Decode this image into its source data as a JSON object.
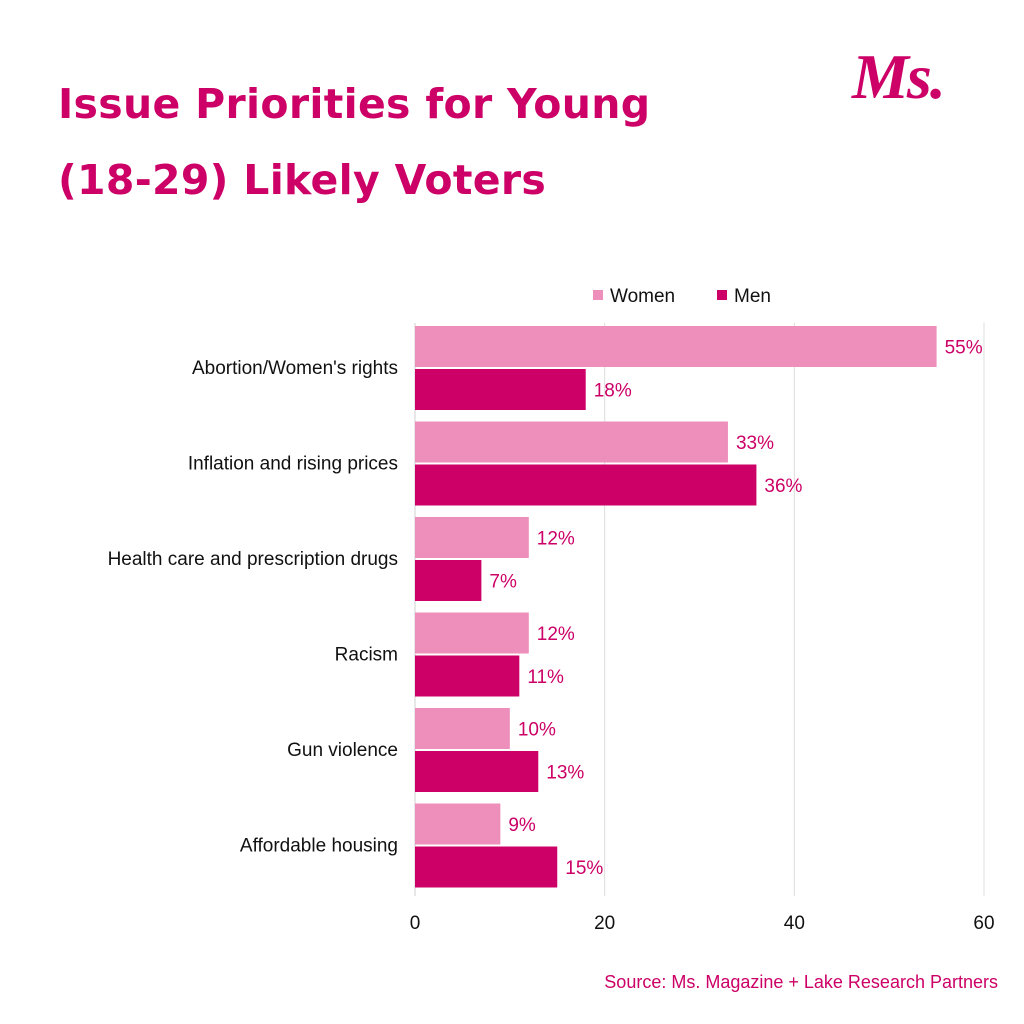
{
  "title": {
    "line1": "Issue Priorities for Young",
    "line2": "(18-29) Likely Voters"
  },
  "logo": "Ms.",
  "source": "Source: Ms. Magazine + Lake Research Partners",
  "colors": {
    "women": "#ee8ebb",
    "men": "#cc0066",
    "accent": "#cc0066",
    "grid": "#dddddd"
  },
  "chart_data": {
    "type": "bar",
    "orientation": "horizontal",
    "categories": [
      "Abortion/Women's rights",
      "Inflation and rising prices",
      "Health care and prescription drugs",
      "Racism",
      "Gun violence",
      "Affordable housing"
    ],
    "series": [
      {
        "name": "Women",
        "values": [
          55,
          33,
          12,
          12,
          10,
          9
        ],
        "labels": [
          "55%",
          "33%",
          "12%",
          "12%",
          "10%",
          "9%"
        ]
      },
      {
        "name": "Men",
        "values": [
          18,
          36,
          7,
          11,
          13,
          15
        ],
        "labels": [
          "18%",
          "36%",
          "7%",
          "11%",
          "13%",
          "15%"
        ]
      }
    ],
    "xlim": [
      0,
      60
    ],
    "xticks": [
      0,
      20,
      40,
      60
    ],
    "xtick_labels": [
      "0",
      "20",
      "40",
      "60"
    ],
    "grid": true,
    "legend_position": "top-right",
    "title": "Issue Priorities for Young (18-29) Likely Voters"
  }
}
